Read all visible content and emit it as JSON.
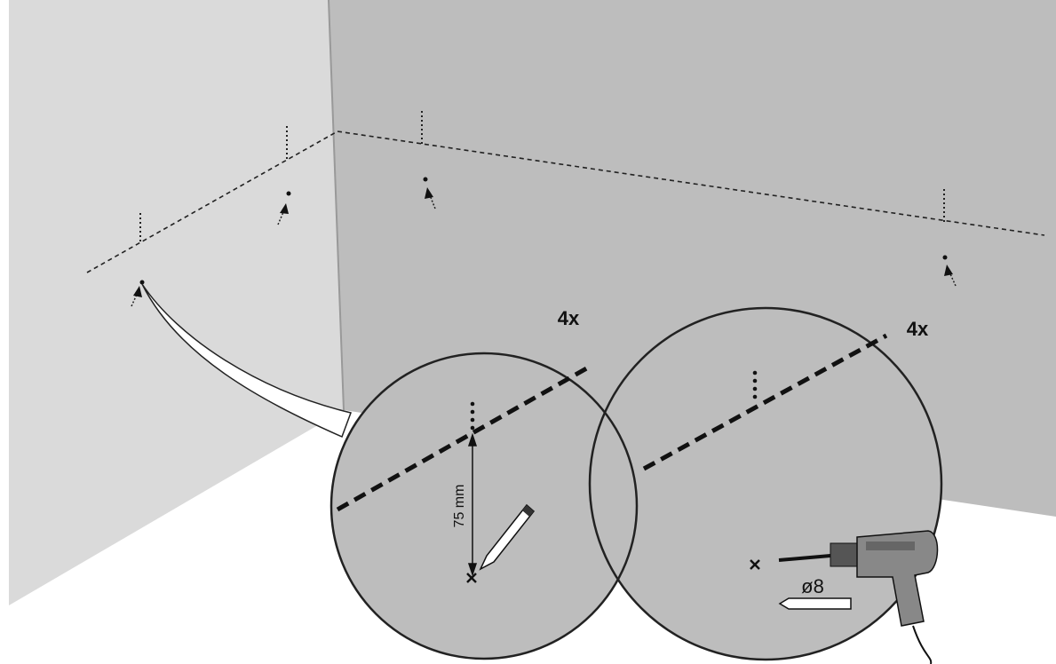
{
  "callouts": [
    {
      "count": "4x"
    },
    {
      "count": "4x"
    }
  ],
  "measurement": "75 mm",
  "drill_bit": "ø8"
}
